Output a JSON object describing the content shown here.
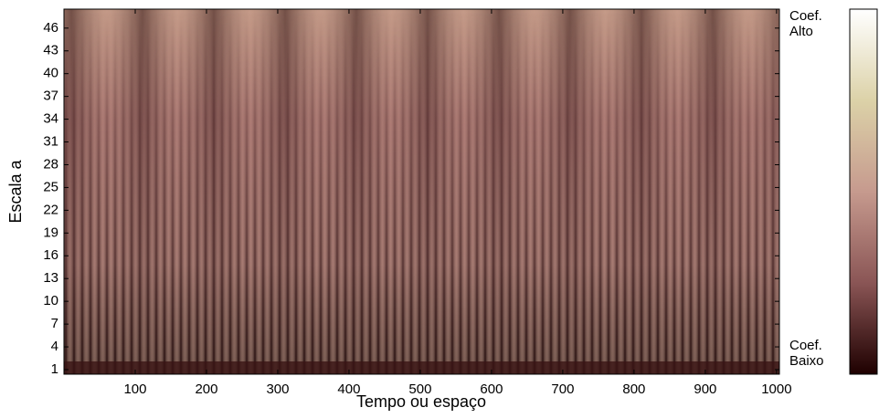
{
  "chart_data": {
    "type": "heatmap",
    "xlabel": "Tempo ou espaço",
    "ylabel": "Escala a",
    "xlim": [
      0,
      1004
    ],
    "ylim": [
      0.4,
      48.5
    ],
    "xticks": [
      100,
      200,
      300,
      400,
      500,
      600,
      700,
      800,
      900,
      1000
    ],
    "yticks": [
      1,
      4,
      7,
      10,
      13,
      16,
      19,
      22,
      25,
      28,
      31,
      34,
      37,
      40,
      43,
      46
    ],
    "colorbar": {
      "high_label": [
        "Coef.",
        "Alto"
      ],
      "low_label": [
        "Coef.",
        "Baixo"
      ]
    }
  }
}
